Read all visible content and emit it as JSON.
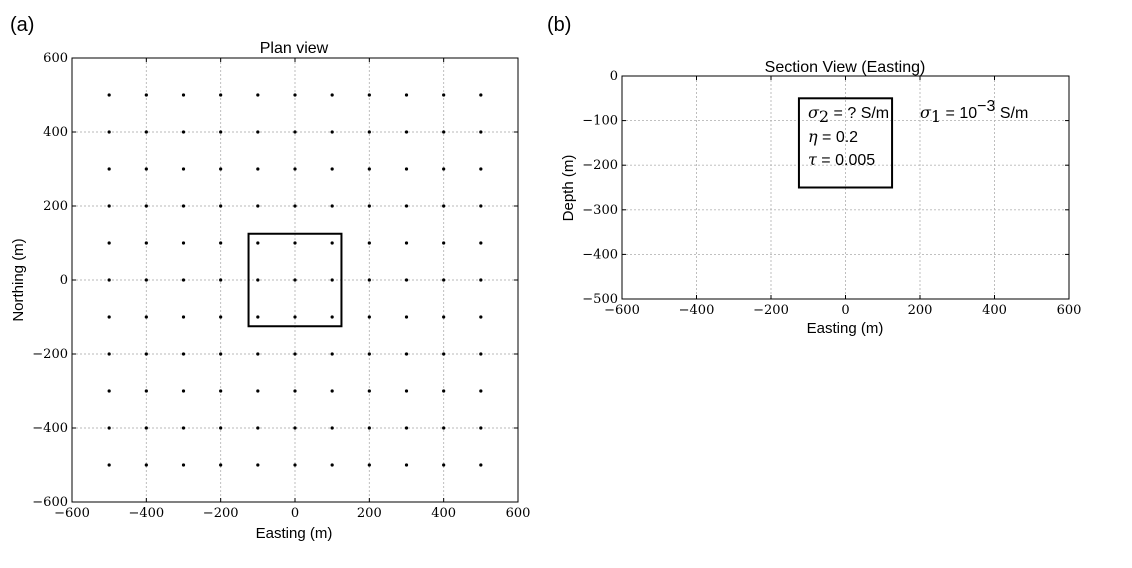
{
  "panels": {
    "a_label": "(a)",
    "b_label": "(b)"
  },
  "chart_data": [
    {
      "type": "scatter",
      "title": "Plan view",
      "xlabel": "Easting (m)",
      "ylabel": "Northing (m)",
      "xlim": [
        -600,
        600
      ],
      "ylim": [
        -600,
        600
      ],
      "xticks": [
        -600,
        -400,
        -200,
        0,
        200,
        400,
        600
      ],
      "yticks": [
        -600,
        -400,
        -200,
        0,
        200,
        400,
        600
      ],
      "grid": true,
      "points": {
        "x": [
          -500,
          -400,
          -300,
          -200,
          -100,
          0,
          100,
          200,
          300,
          400,
          500
        ],
        "y": [
          -500,
          -400,
          -300,
          -200,
          -100,
          0,
          100,
          200,
          300,
          400,
          500
        ],
        "layout": "all x-y combinations (11 x 11 station grid)"
      },
      "box": {
        "x": [
          -125,
          125
        ],
        "y": [
          -125,
          125
        ]
      }
    },
    {
      "type": "scatter",
      "title": "Section View (Easting)",
      "xlabel": "Easting (m)",
      "ylabel": "Depth (m)",
      "xlim": [
        -600,
        600
      ],
      "ylim": [
        -500,
        0
      ],
      "xticks": [
        -600,
        -400,
        -200,
        0,
        200,
        400,
        600
      ],
      "yticks": [
        0,
        -100,
        -200,
        -300,
        -400,
        -500
      ],
      "grid": true,
      "box": {
        "x": [
          -125,
          125
        ],
        "y": [
          -250,
          -50
        ]
      },
      "annotations": {
        "sigma2_sym": "σ",
        "sigma2_sub": "2",
        "sigma2_val": " = ? S/m",
        "eta_sym": "η",
        "eta_val": " = 0.2",
        "tau_sym": "τ",
        "tau_val": " = 0.005",
        "sigma1_sym": "σ",
        "sigma1_sub": "1",
        "sigma1_eq": " = 10",
        "sigma1_exp": "−3",
        "sigma1_unit": " S/m"
      }
    }
  ]
}
